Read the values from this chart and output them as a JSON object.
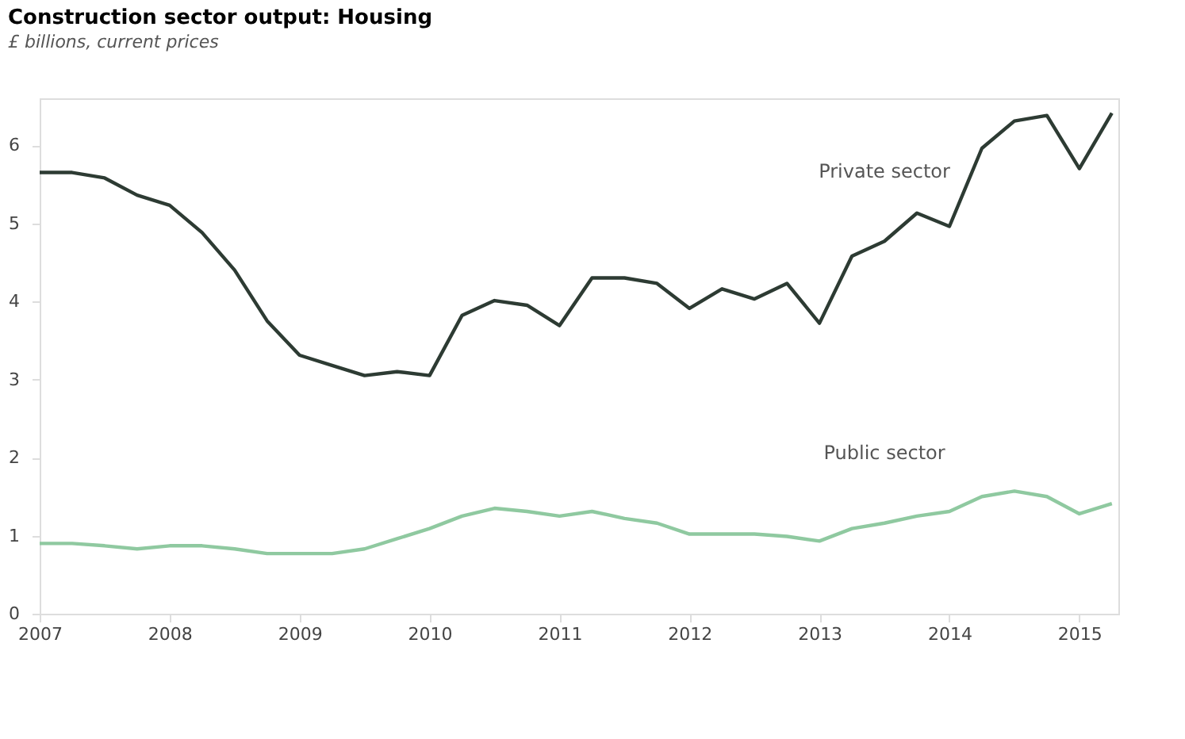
{
  "chart_data": {
    "type": "line",
    "title": "Construction sector output: Housing",
    "subtitle": "£ billions, current prices",
    "x": [
      2007,
      2007.25,
      2007.5,
      2007.75,
      2008,
      2008.25,
      2008.5,
      2008.75,
      2009,
      2009.25,
      2009.5,
      2009.75,
      2010,
      2010.25,
      2010.5,
      2010.75,
      2011,
      2011.25,
      2011.5,
      2011.75,
      2012,
      2012.25,
      2012.5,
      2012.75,
      2013,
      2013.25,
      2013.5,
      2013.75,
      2014,
      2014.25,
      2014.5,
      2014.75,
      2015,
      2015.25
    ],
    "series": [
      {
        "name": "Private sector",
        "color": "#2d3b33",
        "values": [
          5.65,
          5.65,
          5.58,
          5.36,
          5.23,
          4.88,
          4.4,
          3.75,
          3.31,
          3.18,
          3.05,
          3.1,
          3.05,
          3.82,
          4.01,
          3.95,
          3.69,
          4.3,
          4.3,
          4.23,
          3.91,
          4.16,
          4.03,
          4.23,
          3.72,
          4.58,
          4.77,
          5.13,
          4.96,
          5.96,
          6.31,
          6.38,
          5.7,
          6.41
        ]
      },
      {
        "name": "Public sector",
        "color": "#8fc9a0",
        "values": [
          0.9,
          0.9,
          0.87,
          0.83,
          0.87,
          0.87,
          0.83,
          0.77,
          0.77,
          0.77,
          0.83,
          0.96,
          1.09,
          1.25,
          1.35,
          1.31,
          1.25,
          1.31,
          1.22,
          1.16,
          1.02,
          1.02,
          1.02,
          0.99,
          0.93,
          1.09,
          1.16,
          1.25,
          1.31,
          1.5,
          1.57,
          1.5,
          1.28,
          1.41
        ]
      }
    ],
    "xlim": [
      2007,
      2015.3
    ],
    "xticks": [
      2007,
      2008,
      2009,
      2010,
      2011,
      2012,
      2013,
      2014,
      2015
    ],
    "ylim": [
      0,
      6.6
    ],
    "yticks": [
      0,
      1,
      2,
      3,
      4,
      5,
      6
    ],
    "grid": false,
    "legend": false,
    "marker": "none",
    "line_style": "solid"
  }
}
